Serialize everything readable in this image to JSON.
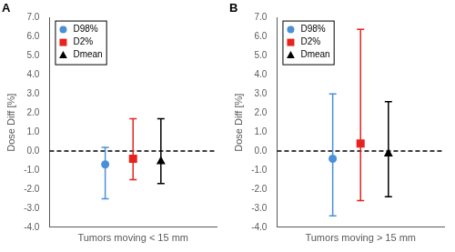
{
  "chart_data": [
    {
      "type": "errorbar",
      "title": "A",
      "categories": [
        "Tumors moving < 15 mm"
      ],
      "ylabel": "Dose Diff [%]",
      "ylim": [
        -4,
        7
      ],
      "yticks": [
        {
          "value": -4,
          "label": "-4.0"
        },
        {
          "value": -3,
          "label": "-3.0"
        },
        {
          "value": -2,
          "label": "-2.0"
        },
        {
          "value": -1,
          "label": "-1.0"
        },
        {
          "value": 0,
          "label": "0.0"
        },
        {
          "value": 1,
          "label": "1.0"
        },
        {
          "value": 2,
          "label": "2.0"
        },
        {
          "value": 3,
          "label": "3.0"
        },
        {
          "value": 4,
          "label": "4.0"
        },
        {
          "value": 5,
          "label": "5.0"
        },
        {
          "value": 6,
          "label": "6.0"
        },
        {
          "value": 7,
          "label": "7.0"
        }
      ],
      "grid": false,
      "legend": "top-left",
      "hlines": [
        {
          "value": 0,
          "line_style": "dashed"
        }
      ],
      "series": [
        {
          "name": "D98%",
          "color": "#4a90d9",
          "marker": "circle",
          "values": [
            -0.7
          ],
          "lower": [
            -2.5
          ],
          "upper": [
            0.2
          ]
        },
        {
          "name": "D2%",
          "color": "#e8231f",
          "marker": "square",
          "values": [
            -0.4
          ],
          "lower": [
            -1.5
          ],
          "upper": [
            1.7
          ]
        },
        {
          "name": "Dmean",
          "color": "#000000",
          "marker": "triangle",
          "values": [
            -0.5
          ],
          "lower": [
            -1.7
          ],
          "upper": [
            1.7
          ]
        }
      ]
    },
    {
      "type": "errorbar",
      "title": "B",
      "categories": [
        "Tumors moving > 15 mm"
      ],
      "ylabel": "Dose Diff [%]",
      "ylim": [
        -4,
        7
      ],
      "yticks": [
        {
          "value": -4,
          "label": "-4.0"
        },
        {
          "value": -3,
          "label": "-3.0"
        },
        {
          "value": -2,
          "label": "-2.0"
        },
        {
          "value": -1,
          "label": "-1.0"
        },
        {
          "value": 0,
          "label": "0.0"
        },
        {
          "value": 1,
          "label": "1.0"
        },
        {
          "value": 2,
          "label": "2.0"
        },
        {
          "value": 3,
          "label": "3.0"
        },
        {
          "value": 4,
          "label": "4.0"
        },
        {
          "value": 5,
          "label": "5.0"
        },
        {
          "value": 6,
          "label": "6.0"
        },
        {
          "value": 7,
          "label": "7.0"
        }
      ],
      "grid": false,
      "legend": "top-left",
      "hlines": [
        {
          "value": 0,
          "line_style": "dashed"
        }
      ],
      "series": [
        {
          "name": "D98%",
          "color": "#4a90d9",
          "marker": "circle",
          "values": [
            -0.4
          ],
          "lower": [
            -3.4
          ],
          "upper": [
            3.0
          ]
        },
        {
          "name": "D2%",
          "color": "#e8231f",
          "marker": "square",
          "values": [
            0.4
          ],
          "lower": [
            -2.6
          ],
          "upper": [
            6.4
          ]
        },
        {
          "name": "Dmean",
          "color": "#000000",
          "marker": "triangle",
          "values": [
            -0.1
          ],
          "lower": [
            -2.4
          ],
          "upper": [
            2.6
          ]
        }
      ]
    }
  ]
}
